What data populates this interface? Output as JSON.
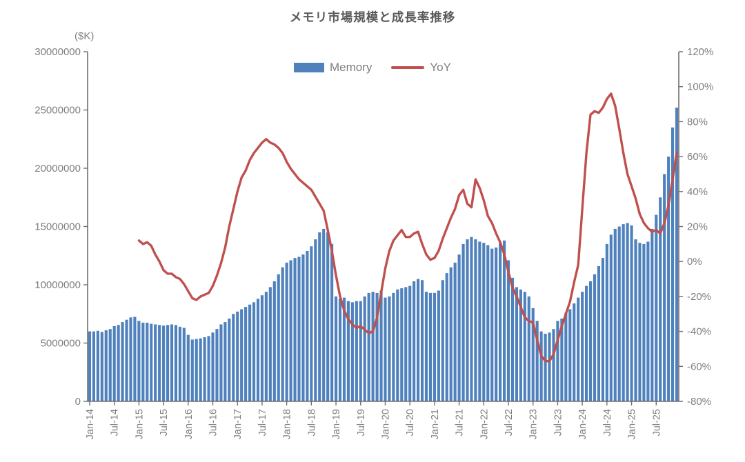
{
  "page": {
    "title": "メモリ市場規模と成長率推移",
    "unit_label": "($K)"
  },
  "legend": {
    "memory_label": "Memory",
    "yoy_label": "YoY"
  },
  "colors": {
    "bar": "#4f81bd",
    "line": "#c0504d",
    "axis": "#6e6e6e",
    "tick_text": "#7f7f7f",
    "title_text": "#595959"
  },
  "chart_data": {
    "type": "bar+line",
    "title": "メモリ市場規模と成長率推移",
    "x_start": "Jan-14",
    "x_freq": "monthly",
    "grid": false,
    "legend_position": "top-center",
    "x_tick_interval": 6,
    "x_tick_labels": [
      "Jan-14",
      "Jul-14",
      "Jan-15",
      "Jul-15",
      "Jan-16",
      "Jul-16",
      "Jan-17",
      "Jul-17",
      "Jan-18",
      "Jul-18",
      "Jan-19",
      "Jul-19",
      "Jan-20",
      "Jul-20",
      "Jan-21",
      "Jul-21",
      "Jan-22",
      "Jul-22",
      "Jan-23",
      "Jul-23",
      "Jan-24",
      "Jul-24",
      "Jan-25",
      "Jul-25"
    ],
    "months": [
      "Jan-14",
      "Feb-14",
      "Mar-14",
      "Apr-14",
      "May-14",
      "Jun-14",
      "Jul-14",
      "Aug-14",
      "Sep-14",
      "Oct-14",
      "Nov-14",
      "Dec-14",
      "Jan-15",
      "Feb-15",
      "Mar-15",
      "Apr-15",
      "May-15",
      "Jun-15",
      "Jul-15",
      "Aug-15",
      "Sep-15",
      "Oct-15",
      "Nov-15",
      "Dec-15",
      "Jan-16",
      "Feb-16",
      "Mar-16",
      "Apr-16",
      "May-16",
      "Jun-16",
      "Jul-16",
      "Aug-16",
      "Sep-16",
      "Oct-16",
      "Nov-16",
      "Dec-16",
      "Jan-17",
      "Feb-17",
      "Mar-17",
      "Apr-17",
      "May-17",
      "Jun-17",
      "Jul-17",
      "Aug-17",
      "Sep-17",
      "Oct-17",
      "Nov-17",
      "Dec-17",
      "Jan-18",
      "Feb-18",
      "Mar-18",
      "Apr-18",
      "May-18",
      "Jun-18",
      "Jul-18",
      "Aug-18",
      "Sep-18",
      "Oct-18",
      "Nov-18",
      "Dec-18",
      "Jan-19",
      "Feb-19",
      "Mar-19",
      "Apr-19",
      "May-19",
      "Jun-19",
      "Jul-19",
      "Aug-19",
      "Sep-19",
      "Oct-19",
      "Nov-19",
      "Dec-19",
      "Jan-20",
      "Feb-20",
      "Mar-20",
      "Apr-20",
      "May-20",
      "Jun-20",
      "Jul-20",
      "Aug-20",
      "Sep-20",
      "Oct-20",
      "Nov-20",
      "Dec-20",
      "Jan-21",
      "Feb-21",
      "Mar-21",
      "Apr-21",
      "May-21",
      "Jun-21",
      "Jul-21",
      "Aug-21",
      "Sep-21",
      "Oct-21",
      "Nov-21",
      "Dec-21",
      "Jan-22",
      "Feb-22",
      "Mar-22",
      "Apr-22",
      "May-22",
      "Jun-22",
      "Jul-22",
      "Aug-22",
      "Sep-22",
      "Oct-22",
      "Nov-22",
      "Dec-22",
      "Jan-23",
      "Feb-23",
      "Mar-23",
      "Apr-23",
      "May-23",
      "Jun-23",
      "Jul-23",
      "Aug-23",
      "Sep-23",
      "Oct-23",
      "Nov-23",
      "Dec-23",
      "Jan-24",
      "Feb-24",
      "Mar-24",
      "Apr-24",
      "May-24",
      "Jun-24",
      "Jul-24",
      "Aug-24",
      "Sep-24",
      "Oct-24",
      "Nov-24",
      "Dec-24",
      "Jan-25",
      "Feb-25",
      "Mar-25",
      "Apr-25",
      "May-25",
      "Jun-25",
      "Jul-25",
      "Aug-25",
      "Sep-25",
      "Oct-25",
      "Nov-25",
      "Dec-25"
    ],
    "left_axis": {
      "unit": "$K",
      "min": 0,
      "max": 30000000,
      "step": 5000000,
      "tick_values": [
        0,
        5000000,
        10000000,
        15000000,
        20000000,
        25000000,
        30000000
      ],
      "tick_labels": [
        "0",
        "5000000",
        "10000000",
        "15000000",
        "20000000",
        "25000000",
        "30000000"
      ]
    },
    "right_axis": {
      "unit": "%",
      "min": -80,
      "max": 120,
      "step": 20,
      "tick_values": [
        -80,
        -60,
        -40,
        -20,
        0,
        20,
        40,
        60,
        80,
        100,
        120
      ],
      "tick_labels": [
        "-80%",
        "-60%",
        "-40%",
        "-20%",
        "0%",
        "20%",
        "40%",
        "60%",
        "80%",
        "100%",
        "120%"
      ]
    },
    "series": [
      {
        "name": "Memory",
        "type": "bar",
        "axis": "left",
        "color": "#4f81bd",
        "values": [
          6000000,
          6000000,
          6050000,
          5950000,
          6100000,
          6200000,
          6450000,
          6550000,
          6800000,
          7000000,
          7200000,
          7250000,
          6900000,
          6750000,
          6750000,
          6650000,
          6600000,
          6550000,
          6500000,
          6550000,
          6600000,
          6550000,
          6400000,
          6300000,
          5700000,
          5300000,
          5350000,
          5400000,
          5500000,
          5600000,
          5900000,
          6200000,
          6600000,
          6800000,
          7100000,
          7500000,
          7700000,
          7900000,
          8100000,
          8300000,
          8500000,
          8800000,
          9100000,
          9400000,
          9800000,
          10300000,
          10900000,
          11500000,
          11900000,
          12100000,
          12300000,
          12400000,
          12600000,
          12900000,
          13300000,
          13900000,
          14500000,
          14800000,
          14500000,
          13500000,
          9000000,
          8800000,
          8900000,
          8600000,
          8500000,
          8600000,
          8600000,
          9000000,
          9300000,
          9400000,
          9300000,
          9500000,
          8900000,
          9000000,
          9300000,
          9600000,
          9700000,
          9800000,
          9900000,
          10300000,
          10500000,
          10400000,
          9400000,
          9300000,
          9300000,
          9500000,
          10400000,
          11000000,
          11500000,
          11900000,
          12600000,
          13500000,
          13900000,
          14100000,
          13900000,
          13700000,
          13600000,
          13400000,
          13100000,
          13200000,
          13600000,
          13800000,
          12100000,
          10600000,
          9800000,
          9600000,
          9400000,
          9000000,
          8000000,
          6900000,
          6000000,
          5800000,
          5900000,
          6200000,
          6900000,
          7100000,
          7600000,
          7900000,
          8400000,
          8900000,
          9400000,
          9900000,
          10300000,
          10900000,
          11600000,
          12300000,
          13500000,
          14300000,
          14800000,
          15000000,
          15200000,
          15300000,
          15100000,
          13900000,
          13600000,
          13500000,
          13700000,
          14800000,
          16000000,
          17500000,
          19500000,
          21000000,
          23500000,
          25200000
        ]
      },
      {
        "name": "YoY",
        "type": "line",
        "axis": "right",
        "color": "#c0504d",
        "values": [
          null,
          null,
          null,
          null,
          null,
          null,
          null,
          null,
          null,
          null,
          null,
          null,
          12,
          10,
          11,
          9,
          4,
          0,
          -5,
          -7,
          -7,
          -9,
          -10,
          -13,
          -17,
          -21,
          -22,
          -20,
          -19,
          -18,
          -14,
          -8,
          -1,
          8,
          20,
          30,
          40,
          48,
          52,
          58,
          62,
          65,
          68,
          70,
          68,
          67,
          65,
          62,
          57,
          53,
          50,
          47,
          45,
          43,
          41,
          37,
          33,
          29,
          18,
          6,
          -8,
          -20,
          -28,
          -33,
          -36,
          -38,
          -37,
          -39,
          -41,
          -40,
          -32,
          -18,
          -4,
          6,
          12,
          15,
          18,
          14,
          14,
          16,
          17,
          10,
          4,
          1,
          2,
          6,
          13,
          19,
          25,
          30,
          38,
          41,
          33,
          31,
          47,
          42,
          35,
          26,
          22,
          16,
          11,
          4,
          -6,
          -15,
          -20,
          -26,
          -32,
          -34,
          -35,
          -45,
          -54,
          -57,
          -57,
          -53,
          -45,
          -37,
          -30,
          -23,
          -12,
          -2,
          30,
          62,
          84,
          86,
          85,
          88,
          93,
          96,
          89,
          76,
          62,
          50,
          43,
          36,
          27,
          22,
          19,
          17,
          18,
          16,
          22,
          32,
          47,
          62
        ]
      }
    ]
  }
}
